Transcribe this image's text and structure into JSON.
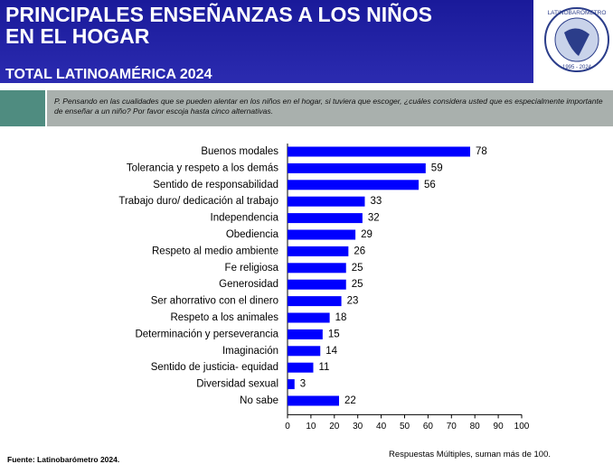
{
  "header": {
    "title_lines": [
      "PRINCIPALES ENSEÑANZAS A LOS NIÑOS",
      "EN EL HOGAR"
    ],
    "subtitle": "TOTAL LATINOAMÉRICA 2024",
    "logo_name": "LATINOBARÓMETRO",
    "logo_years": "1995 - 2024"
  },
  "question": "P. Pensando en las cualidades que se pueden alentar en los niños en el hogar, si tuviera que escoger, ¿cuáles considera usted que es especialmente importante de enseñar a un niño? Por favor escoja hasta cinco alternativas.",
  "chart_data": {
    "type": "bar",
    "orientation": "horizontal",
    "categories": [
      "Buenos modales",
      "Tolerancia y respeto a los demás",
      "Sentido de responsabilidad",
      "Trabajo duro/ dedicación al trabajo",
      "Independencia",
      "Obediencia",
      "Respeto al medio ambiente",
      "Fe religiosa",
      "Generosidad",
      "Ser ahorrativo con el dinero",
      "Respeto a los animales",
      "Determinación y perseverancia",
      "Imaginación",
      "Sentido de justicia- equidad",
      "Diversidad sexual",
      "No sabe"
    ],
    "values": [
      78,
      59,
      56,
      33,
      32,
      29,
      26,
      25,
      25,
      23,
      18,
      15,
      14,
      11,
      3,
      22
    ],
    "color": "#0000ff",
    "xlim": [
      0,
      100
    ],
    "xticks": [
      0,
      10,
      20,
      30,
      40,
      50,
      60,
      70,
      80,
      90,
      100
    ],
    "grid": false
  },
  "footer": {
    "source": "Fuente: Latinobarómetro 2024.",
    "note": "Respuestas Múltiples, suman más de 100."
  }
}
